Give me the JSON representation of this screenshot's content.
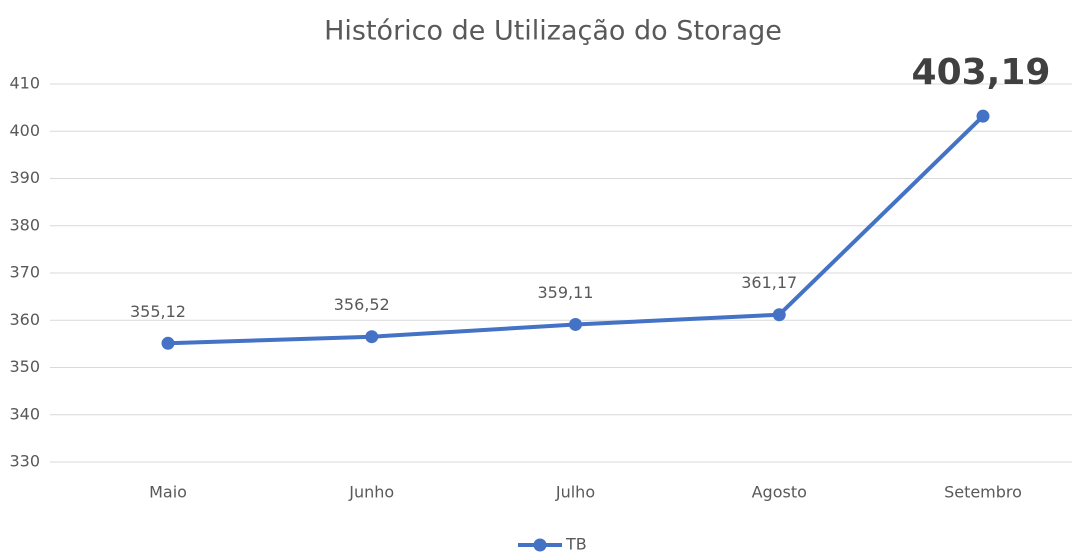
{
  "chart_data": {
    "type": "line",
    "title": "Histórico de Utilização do Storage",
    "categories": [
      "Maio",
      "Junho",
      "Julho",
      "Agosto",
      "Setembro"
    ],
    "series": [
      {
        "name": "TB",
        "color": "#4472c4",
        "values": [
          355.12,
          356.52,
          359.11,
          361.17,
          403.19
        ],
        "value_labels": [
          "355,12",
          "356,52",
          "359,11",
          "361,17",
          "403,19"
        ]
      }
    ],
    "ylim": [
      330,
      410
    ],
    "yticks": [
      330,
      340,
      350,
      360,
      370,
      380,
      390,
      400,
      410
    ],
    "grid": true,
    "legend": "bottom"
  }
}
